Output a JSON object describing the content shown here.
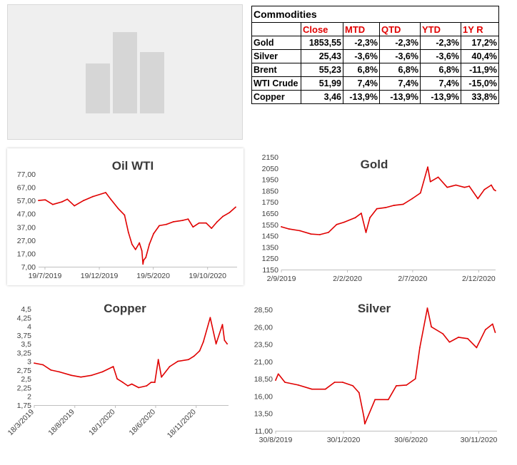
{
  "table": {
    "title": "Commodities",
    "headers": [
      "",
      "Close",
      "MTD",
      "QTD",
      "YTD",
      "1Y R"
    ],
    "rows": [
      [
        "Gold",
        "1853,55",
        "-2,3%",
        "-2,3%",
        "-2,3%",
        "17,2%"
      ],
      [
        "Silver",
        "25,43",
        "-3,6%",
        "-3,6%",
        "-3,6%",
        "40,4%"
      ],
      [
        "Brent",
        "55,23",
        "6,8%",
        "6,8%",
        "6,8%",
        "-11,9%"
      ],
      [
        "WTI Crude",
        "51,99",
        "7,4%",
        "7,4%",
        "7,4%",
        "-15,0%"
      ],
      [
        "Copper",
        "3,46",
        "-13,9%",
        "-13,9%",
        "-13,9%",
        "33,8%"
      ]
    ]
  },
  "colors": {
    "series": "#e00000",
    "header": "#e00000",
    "placeholder": "#efefef",
    "placeholder_bars": "#d6d6d6"
  },
  "chart_data": [
    {
      "type": "line",
      "title": "Oil WTI",
      "yticks": [
        "77,00",
        "67,00",
        "57,00",
        "47,00",
        "37,00",
        "27,00",
        "17,00",
        "7,00"
      ],
      "ylim": [
        7,
        77
      ],
      "xticks": [
        "19/7/2019",
        "19/12/2019",
        "19/5/2020",
        "19/10/2020"
      ],
      "xtick_dates": [
        "2019-07-19",
        "2019-12-19",
        "2020-05-19",
        "2020-10-19"
      ],
      "xlim": [
        "2019-07-01",
        "2021-01-10"
      ],
      "x": [
        "2019-07-01",
        "2019-07-20",
        "2019-08-10",
        "2019-09-05",
        "2019-09-20",
        "2019-10-10",
        "2019-11-05",
        "2019-12-01",
        "2020-01-06",
        "2020-01-20",
        "2020-02-10",
        "2020-02-28",
        "2020-03-10",
        "2020-03-20",
        "2020-03-30",
        "2020-04-10",
        "2020-04-17",
        "2020-04-20",
        "2020-04-22",
        "2020-04-28",
        "2020-05-08",
        "2020-05-20",
        "2020-06-05",
        "2020-06-25",
        "2020-07-15",
        "2020-08-10",
        "2020-08-25",
        "2020-09-08",
        "2020-09-25",
        "2020-10-15",
        "2020-10-30",
        "2020-11-15",
        "2020-12-01",
        "2020-12-20",
        "2021-01-06"
      ],
      "y": [
        57,
        57.5,
        54,
        56,
        58,
        53,
        57,
        60,
        63,
        58,
        51,
        46,
        33,
        24,
        20,
        25,
        19,
        9,
        12,
        14,
        24,
        32,
        38,
        39,
        41,
        42,
        43,
        37,
        40,
        40,
        36,
        41,
        45,
        48,
        52
      ],
      "series": [
        {
          "name": ""
        }
      ]
    },
    {
      "type": "line",
      "title": "Gold",
      "yticks": [
        "2150",
        "2050",
        "1950",
        "1850",
        "1750",
        "1650",
        "1550",
        "1450",
        "1350",
        "1250",
        "1150"
      ],
      "ylim": [
        1150,
        2150
      ],
      "xticks": [
        "2/9/2019",
        "2/2/2020",
        "2/7/2020",
        "2/12/2020"
      ],
      "xtick_dates": [
        "2019-09-02",
        "2020-02-02",
        "2020-07-02",
        "2020-12-02"
      ],
      "xlim": [
        "2019-09-02",
        "2021-01-10"
      ],
      "x": [
        "2019-09-02",
        "2019-09-20",
        "2019-10-15",
        "2019-11-10",
        "2019-11-30",
        "2019-12-20",
        "2020-01-08",
        "2020-01-25",
        "2020-02-20",
        "2020-03-05",
        "2020-03-16",
        "2020-03-25",
        "2020-04-10",
        "2020-04-30",
        "2020-05-20",
        "2020-06-10",
        "2020-07-01",
        "2020-07-20",
        "2020-08-06",
        "2020-08-12",
        "2020-08-30",
        "2020-09-20",
        "2020-10-10",
        "2020-10-30",
        "2020-11-10",
        "2020-11-30",
        "2020-12-15",
        "2020-12-31",
        "2021-01-06",
        "2021-01-10"
      ],
      "y": [
        1530,
        1510,
        1495,
        1465,
        1460,
        1480,
        1550,
        1570,
        1610,
        1650,
        1480,
        1610,
        1690,
        1700,
        1720,
        1730,
        1780,
        1830,
        2060,
        1930,
        1970,
        1880,
        1900,
        1880,
        1890,
        1780,
        1860,
        1900,
        1860,
        1850
      ],
      "series": [
        {
          "name": ""
        }
      ]
    },
    {
      "type": "line",
      "title": "Copper",
      "yticks": [
        "4,5",
        "4,25",
        "4",
        "3,75",
        "3,5",
        "3,25",
        "3",
        "2,75",
        "2,5",
        "2,25",
        "2",
        "1,75"
      ],
      "ylim": [
        1.75,
        4.5
      ],
      "xticks": [
        "18/3/2019",
        "18/8/2019",
        "18/1/2020",
        "18/6/2020",
        "18/11/2020"
      ],
      "xtick_dates": [
        "2019-03-18",
        "2019-08-18",
        "2020-01-18",
        "2020-06-18",
        "2020-11-18"
      ],
      "xlim": [
        "2019-03-18",
        "2021-03-20"
      ],
      "x": [
        "2019-03-18",
        "2019-04-20",
        "2019-05-20",
        "2019-06-20",
        "2019-08-05",
        "2019-09-10",
        "2019-10-20",
        "2019-11-30",
        "2020-01-10",
        "2020-01-25",
        "2020-02-15",
        "2020-03-05",
        "2020-03-20",
        "2020-04-15",
        "2020-05-15",
        "2020-06-01",
        "2020-06-15",
        "2020-06-28",
        "2020-07-10",
        "2020-08-10",
        "2020-09-10",
        "2020-10-20",
        "2020-11-10",
        "2020-12-01",
        "2020-12-15",
        "2021-01-10",
        "2021-02-01",
        "2021-02-25",
        "2021-03-05",
        "2021-03-15"
      ],
      "y": [
        2.95,
        2.9,
        2.75,
        2.7,
        2.6,
        2.55,
        2.6,
        2.7,
        2.85,
        2.5,
        2.4,
        2.3,
        2.35,
        2.25,
        2.3,
        2.4,
        2.4,
        3.05,
        2.55,
        2.85,
        3.0,
        3.05,
        3.15,
        3.3,
        3.55,
        4.25,
        3.5,
        4.05,
        3.6,
        3.5
      ],
      "series": [
        {
          "name": ""
        }
      ]
    },
    {
      "type": "line",
      "title": "Silver",
      "yticks": [
        "28,50",
        "26,00",
        "23,50",
        "21,00",
        "18,50",
        "16,00",
        "13,50",
        "11,00"
      ],
      "ylim": [
        11,
        28.5
      ],
      "xticks": [
        "30/8/2019",
        "30/1/2020",
        "30/6/2020",
        "30/11/2020"
      ],
      "xtick_dates": [
        "2019-08-30",
        "2020-01-30",
        "2020-06-30",
        "2020-11-30"
      ],
      "xlim": [
        "2019-08-30",
        "2021-01-10"
      ],
      "x": [
        "2019-08-30",
        "2019-09-05",
        "2019-09-20",
        "2019-10-20",
        "2019-11-20",
        "2019-12-20",
        "2020-01-10",
        "2020-01-28",
        "2020-02-20",
        "2020-03-05",
        "2020-03-16",
        "2020-03-18",
        "2020-04-10",
        "2020-05-10",
        "2020-05-28",
        "2020-06-20",
        "2020-07-10",
        "2020-07-20",
        "2020-08-06",
        "2020-08-15",
        "2020-09-10",
        "2020-09-25",
        "2020-10-15",
        "2020-11-05",
        "2020-11-25",
        "2020-12-15",
        "2020-12-31",
        "2021-01-06"
      ],
      "y": [
        18.3,
        19.2,
        18.0,
        17.6,
        17.0,
        17.0,
        18.0,
        18.0,
        17.5,
        16.5,
        13.0,
        12.0,
        15.5,
        15.5,
        17.5,
        17.6,
        18.5,
        23.0,
        28.7,
        26.0,
        25.0,
        23.8,
        24.5,
        24.3,
        23.0,
        25.6,
        26.4,
        25.2
      ],
      "series": [
        {
          "name": ""
        }
      ]
    }
  ]
}
